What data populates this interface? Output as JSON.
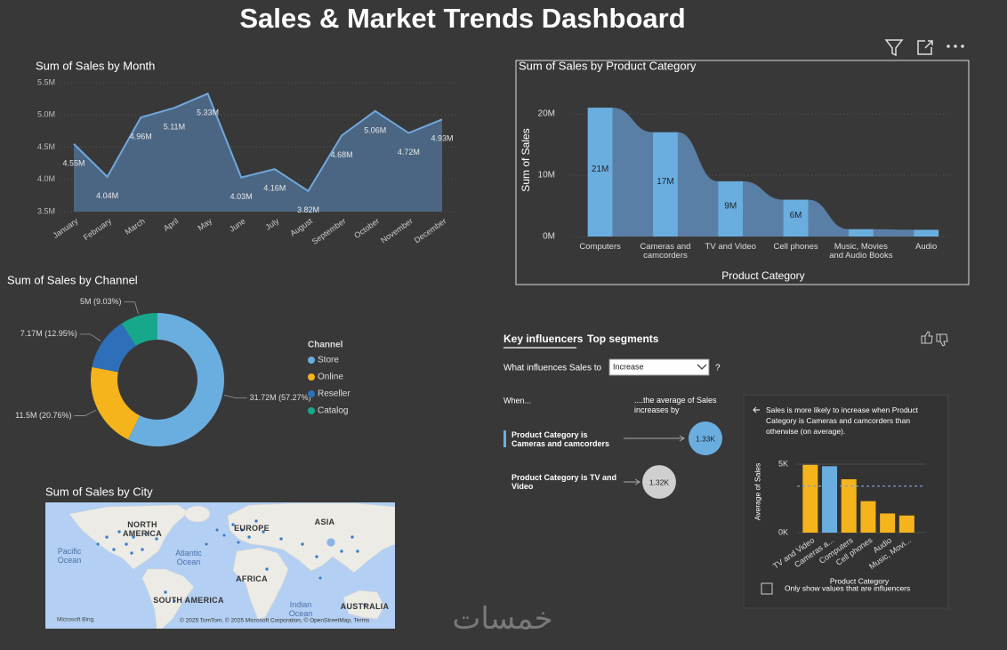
{
  "title": "Sales & Market Trends Dashboard",
  "chart_data": [
    {
      "type": "area",
      "title": "Sum of Sales by Month",
      "categories": [
        "January",
        "February",
        "March",
        "April",
        "May",
        "June",
        "July",
        "August",
        "September",
        "October",
        "November",
        "December"
      ],
      "values": [
        4.55,
        4.04,
        4.96,
        5.11,
        5.33,
        4.03,
        4.16,
        3.82,
        4.68,
        5.06,
        4.72,
        4.93
      ],
      "value_labels": [
        "4.55M",
        "4.04M",
        "4.96M",
        "5.11M",
        "5.33M",
        "4.03M",
        "4.16M",
        "3.82M",
        "4.68M",
        "5.06M",
        "4.72M",
        "4.93M"
      ],
      "color": "#6fa8dc",
      "ylim": [
        3.5,
        5.5
      ],
      "yticks": [
        {
          "value": 3.5,
          "label": "3.5M"
        },
        {
          "value": 4.0,
          "label": "4.0M"
        },
        {
          "value": 4.5,
          "label": "4.5M"
        },
        {
          "value": 5.0,
          "label": "5.0M"
        },
        {
          "value": 5.5,
          "label": "5.5M"
        }
      ],
      "grid": true
    },
    {
      "type": "ribbon",
      "title": "Sum of Sales by Product Category",
      "xlabel": "Product Category",
      "ylabel": "Sum of Sales",
      "categories": [
        "Computers",
        "Cameras and camcorders",
        "TV and Video",
        "Cell phones",
        "Music, Movies and Audio Books",
        "Audio"
      ],
      "values": [
        21,
        17,
        9,
        6,
        1.2,
        1.1
      ],
      "value_labels": [
        "21M",
        "17M",
        "9M",
        "6M",
        null,
        null
      ],
      "color": "#6aaee0",
      "ribbon_color": "#5a7fa6",
      "ylim": [
        0,
        22
      ],
      "yticks": [
        {
          "value": 0,
          "label": "0M"
        },
        {
          "value": 10,
          "label": "10M"
        },
        {
          "value": 20,
          "label": "20M"
        }
      ],
      "grid": true
    },
    {
      "type": "donut",
      "title": "Sum of Sales by Channel",
      "legend_title": "Channel",
      "categories": [
        "Store",
        "Online",
        "Reseller",
        "Catalog"
      ],
      "values": [
        31.72,
        11.5,
        7.17,
        5
      ],
      "value_labels": [
        "31.72M (57.27%)",
        "11.5M (20.76%)",
        "7.17M (12.95%)",
        "5M (9.03%)"
      ],
      "colors": [
        "#6aaee0",
        "#f5b41c",
        "#2e6fba",
        "#17a88b"
      ],
      "legend": "right"
    },
    {
      "type": "bar",
      "xlabel": "Product Category",
      "ylabel": "Average of Sales",
      "categories": [
        "TV and Video",
        "Cameras a...",
        "Computers",
        "Cell phones",
        "Audio",
        "Music, Movi..."
      ],
      "values": [
        4.95,
        4.85,
        3.9,
        2.3,
        1.4,
        1.25
      ],
      "colors": [
        "#f5b41c",
        "#6aaee0",
        "#f5b41c",
        "#f5b41c",
        "#f5b41c",
        "#f5b41c"
      ],
      "ylim": [
        0,
        5.5
      ],
      "yticks": [
        {
          "value": 0,
          "label": "0K"
        },
        {
          "value": 5,
          "label": "5K"
        }
      ],
      "reference_line": 3.4,
      "grid": true
    }
  ],
  "map": {
    "title": "Sum of Sales by City",
    "labels": [
      "NORTH AMERICA",
      "EUROPE",
      "ASIA",
      "Pacific Ocean",
      "Atlantic Ocean",
      "AFRICA",
      "SOUTH AMERICA",
      "Indian Ocean",
      "AUSTRALIA"
    ],
    "attribution": "© 2025 TomTom, © 2025 Microsoft Corporation, © OpenStreetMap, Terms",
    "brand": "Microsoft Bing"
  },
  "key_influencers": {
    "tabs": [
      "Key influencers",
      "Top segments"
    ],
    "question": "What influences Sales to",
    "selection": "Increase",
    "help": "?",
    "when_header": "When...",
    "effect_header": "....the average of Sales increases by",
    "items": [
      {
        "label": "Product Category is Cameras and camcorders",
        "value": 1.33,
        "value_label": "1.33K"
      },
      {
        "label": "Product Category is TV and Video",
        "value": 1.32,
        "value_label": "1.32K"
      }
    ],
    "detail": "Sales is more likely to increase when Product Category is Cameras and camcorders than otherwise (on average).",
    "checkbox": "Only show values that are influencers"
  },
  "watermark": "خمسات"
}
